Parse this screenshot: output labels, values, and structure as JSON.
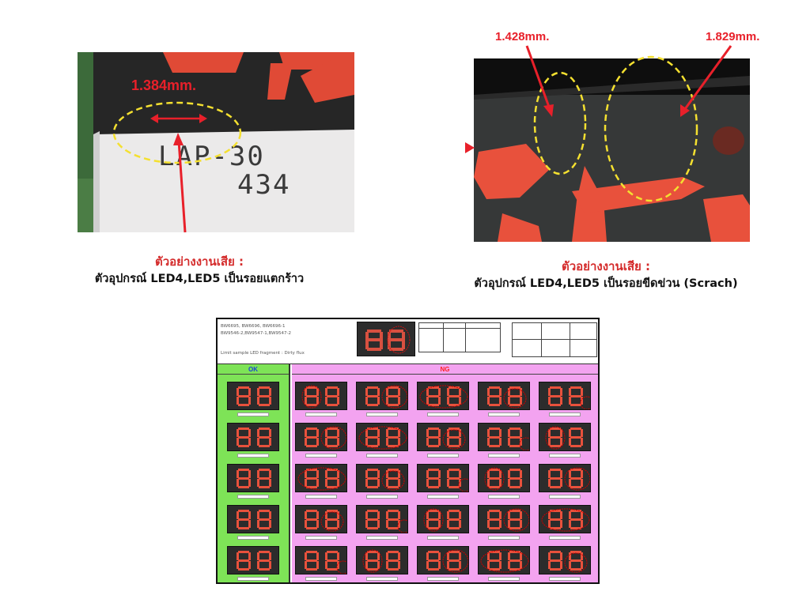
{
  "left_photo": {
    "measurement": "1.384mm.",
    "device_marking_line1": "LAP-30",
    "device_marking_line2": "434"
  },
  "left_caption": {
    "title": "ตัวอย่างงานเสีย  :",
    "detail": "ตัวอุปกรณ์ LED4,LED5  เป็นรอยแตกร้าว"
  },
  "right_photo": {
    "measurement_1": "1.428mm.",
    "measurement_2": "1.829mm."
  },
  "right_caption": {
    "title": "ตัวอย่างงานเสีย  :",
    "detail": "ตัวอุปกรณ์ LED4,LED5   เป็นรอยขีดข่วน (Scrach)"
  },
  "sheet": {
    "header_line1": "BW6695, BW6696, BW6696-1",
    "header_line2": "BW9546-2,BW9547-1,BW9547-2",
    "header_line3": "Limit sample LED fragment : Dirty flux",
    "ok_label": "OK",
    "ng_label": "NG",
    "ok_count": 5,
    "ng_rows": 5,
    "ng_cols": 5
  },
  "colors": {
    "annotation_red": "#e8202a",
    "highlight_yellow": "#f4e030",
    "ok_green": "#7ee357",
    "ng_pink": "#f3a3f0",
    "segment_red": "#e8513c"
  }
}
